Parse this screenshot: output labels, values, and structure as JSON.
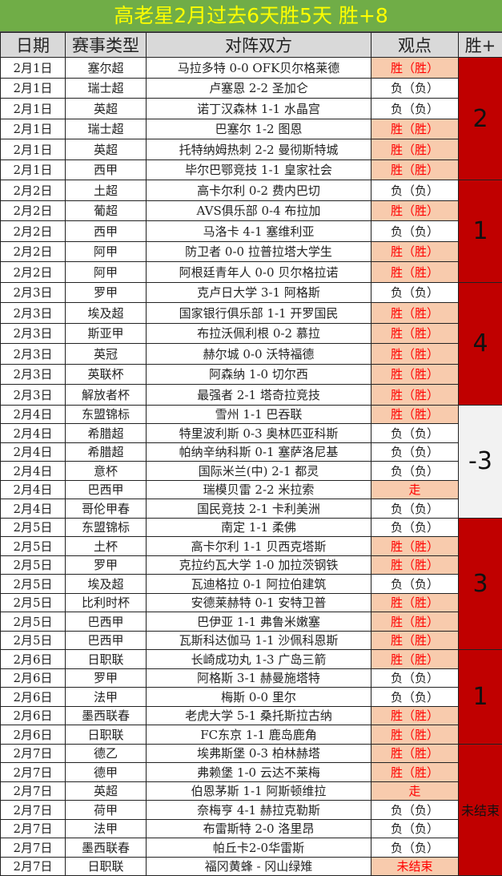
{
  "title": "高老星2月过去6天胜5天  胜+8",
  "headers": [
    "日期",
    "赛事类型",
    "对阵双方",
    "观点",
    "胜+"
  ],
  "colors": {
    "title_bg": "#70ad47",
    "title_text": "#ffff00",
    "header_bg": "#d9d9d9",
    "win_bg": "#f8cbad",
    "win_text": "#ff0000",
    "summary_red": "#c00000",
    "summary_gray": "#f2f2f2"
  },
  "groups": [
    {
      "summary": "2",
      "color": "#c00000",
      "rows": [
        {
          "date": "2月1日",
          "type": "塞尔超",
          "match": "马拉多特 0-0 OFK贝尔格莱德",
          "view": "胜（胜）",
          "hit": true
        },
        {
          "date": "2月1日",
          "type": "瑞士超",
          "match": "卢塞恩 2-2 圣加仑",
          "view": "负（负）",
          "hit": false
        },
        {
          "date": "2月1日",
          "type": "英超",
          "match": "诺丁汉森林 1-1 水晶宫",
          "view": "负（负）",
          "hit": false
        },
        {
          "date": "2月1日",
          "type": "瑞士超",
          "match": "巴塞尔 1-2 图恩",
          "view": "胜（胜）",
          "hit": true
        },
        {
          "date": "2月1日",
          "type": "英超",
          "match": "托特纳姆热刺 2-2 曼彻斯特城",
          "view": "胜（胜）",
          "hit": true
        },
        {
          "date": "2月1日",
          "type": "西甲",
          "match": "毕尔巴鄂竞技 1-1 皇家社会",
          "view": "胜（胜）",
          "hit": true
        }
      ]
    },
    {
      "summary": "1",
      "color": "#c00000",
      "rows": [
        {
          "date": "2月2日",
          "type": "土超",
          "match": "高卡尔利 0-2 费内巴切",
          "view": "负（负）",
          "hit": false
        },
        {
          "date": "2月2日",
          "type": "葡超",
          "match": "AVS俱乐部 0-4 布拉加",
          "view": "胜（胜）",
          "hit": true
        },
        {
          "date": "2月2日",
          "type": "西甲",
          "match": "马洛卡 4-1 塞维利亚",
          "view": "负（负）",
          "hit": false
        },
        {
          "date": "2月2日",
          "type": "阿甲",
          "match": "防卫者 0-0 拉普拉塔大学生",
          "view": "胜（胜）",
          "hit": true
        },
        {
          "date": "2月2日",
          "type": "阿甲",
          "match": "阿根廷青年人 0-0 贝尔格拉诺",
          "view": "胜（胜）",
          "hit": true
        }
      ]
    },
    {
      "summary": "4",
      "color": "#c00000",
      "rows": [
        {
          "date": "2月3日",
          "type": "罗甲",
          "match": "克卢日大学 3-1 阿格斯",
          "view": "负（负）",
          "hit": false
        },
        {
          "date": "2月3日",
          "type": "埃及超",
          "match": "国家银行俱乐部 1-1 开罗国民",
          "view": "胜（胜）",
          "hit": true
        },
        {
          "date": "2月3日",
          "type": "斯亚甲",
          "match": "布拉沃佩利根 0-2 慕拉",
          "view": "胜（胜）",
          "hit": true
        },
        {
          "date": "2月3日",
          "type": "英冠",
          "match": "赫尔城 0-0 沃特福德",
          "view": "胜（胜）",
          "hit": true
        },
        {
          "date": "2月3日",
          "type": "英联杯",
          "match": "阿森纳 1-0 切尔西",
          "view": "胜（胜）",
          "hit": true
        },
        {
          "date": "2月3日",
          "type": "解放者杯",
          "match": "最强者 2-1 塔奇拉竞技",
          "view": "胜（胜）",
          "hit": true
        }
      ]
    },
    {
      "summary": "-3",
      "color": "#f2f2f2",
      "rows": [
        {
          "date": "2月4日",
          "type": "东盟锦标",
          "match": "雪州 1-1 巴吞联",
          "view": "胜（胜）",
          "hit": true
        },
        {
          "date": "2月4日",
          "type": "希腊超",
          "match": "特里波利斯 0-3 奥林匹亚科斯",
          "view": "负（负）",
          "hit": false
        },
        {
          "date": "2月4日",
          "type": "希腊超",
          "match": "帕纳辛纳科斯 0-1 塞萨洛尼基",
          "view": "负（负）",
          "hit": false
        },
        {
          "date": "2月4日",
          "type": "意杯",
          "match": "国际米兰(中) 2-1 都灵",
          "view": "负（负）",
          "hit": false
        },
        {
          "date": "2月4日",
          "type": "巴西甲",
          "match": "瑞模贝雷 2-2 米拉索",
          "view": "走",
          "hit": true
        },
        {
          "date": "2月4日",
          "type": "哥伦甲春",
          "match": "国民竞技 2-1 卡利美洲",
          "view": "负（负）",
          "hit": false
        }
      ]
    },
    {
      "summary": "3",
      "color": "#c00000",
      "rows": [
        {
          "date": "2月5日",
          "type": "东盟锦标",
          "match": "南定 1-1 柔佛",
          "view": "负（负）",
          "hit": false
        },
        {
          "date": "2月5日",
          "type": "土杯",
          "match": "高卡尔利 1-1 贝西克塔斯",
          "view": "胜（胜）",
          "hit": true
        },
        {
          "date": "2月5日",
          "type": "罗甲",
          "match": "克拉约瓦大学 1-0 加拉茨钢铁",
          "view": "胜（胜）",
          "hit": true
        },
        {
          "date": "2月5日",
          "type": "埃及超",
          "match": "瓦迪格拉 0-1 阿拉伯建筑",
          "view": "负（负）",
          "hit": false
        },
        {
          "date": "2月5日",
          "type": "比利时杯",
          "match": "安德莱赫特 0-1 安特卫普",
          "view": "胜（胜）",
          "hit": true
        },
        {
          "date": "2月5日",
          "type": "巴西甲",
          "match": "巴伊亚 1-1 弗鲁米嫩塞",
          "view": "胜（胜）",
          "hit": true
        },
        {
          "date": "2月5日",
          "type": "巴西甲",
          "match": "瓦斯科达伽马 1-1 沙佩科恩斯",
          "view": "胜（胜）",
          "hit": true
        }
      ]
    },
    {
      "summary": "1",
      "color": "#c00000",
      "rows": [
        {
          "date": "2月6日",
          "type": "日职联",
          "match": "长崎成功丸 1-3 广岛三箭",
          "view": "胜（胜）",
          "hit": true
        },
        {
          "date": "2月6日",
          "type": "罗甲",
          "match": "阿格斯 3-1 赫曼施塔特",
          "view": "负（负）",
          "hit": false
        },
        {
          "date": "2月6日",
          "type": "法甲",
          "match": "梅斯 0-0 里尔",
          "view": "负（负）",
          "hit": false
        },
        {
          "date": "2月6日",
          "type": "墨西联春",
          "match": "老虎大学 5-1 桑托斯拉古纳",
          "view": "胜（胜）",
          "hit": true
        },
        {
          "date": "2月6日",
          "type": "日职联",
          "match": "FC东京 1-1 鹿岛鹿角",
          "view": "胜（胜）",
          "hit": true
        }
      ]
    },
    {
      "summary": "未结束",
      "color": "#c00000",
      "rows": [
        {
          "date": "2月7日",
          "type": "德乙",
          "match": "埃弗斯堡 0-3 柏林赫塔",
          "view": "胜（胜）",
          "hit": true
        },
        {
          "date": "2月7日",
          "type": "德甲",
          "match": "弗赖堡 1-0 云达不莱梅",
          "view": "胜（胜）",
          "hit": true
        },
        {
          "date": "2月7日",
          "type": "英超",
          "match": "伯恩茅斯 1-1 阿斯顿维拉",
          "view": "走",
          "hit": true
        },
        {
          "date": "2月7日",
          "type": "荷甲",
          "match": "奈梅亨 4-1 赫拉克勒斯",
          "view": "负（负）",
          "hit": false
        },
        {
          "date": "2月7日",
          "type": "法甲",
          "match": "布雷斯特 2-0 洛里昂",
          "view": "负（负）",
          "hit": false
        },
        {
          "date": "2月7日",
          "type": "墨西联春",
          "match": "帕丘卡2-0华雷斯",
          "view": "负（负）",
          "hit": false
        },
        {
          "date": "2月7日",
          "type": "日职联",
          "match": "福冈黄蜂 - 冈山绿雉",
          "view": "未结束",
          "hit": true
        }
      ]
    }
  ]
}
